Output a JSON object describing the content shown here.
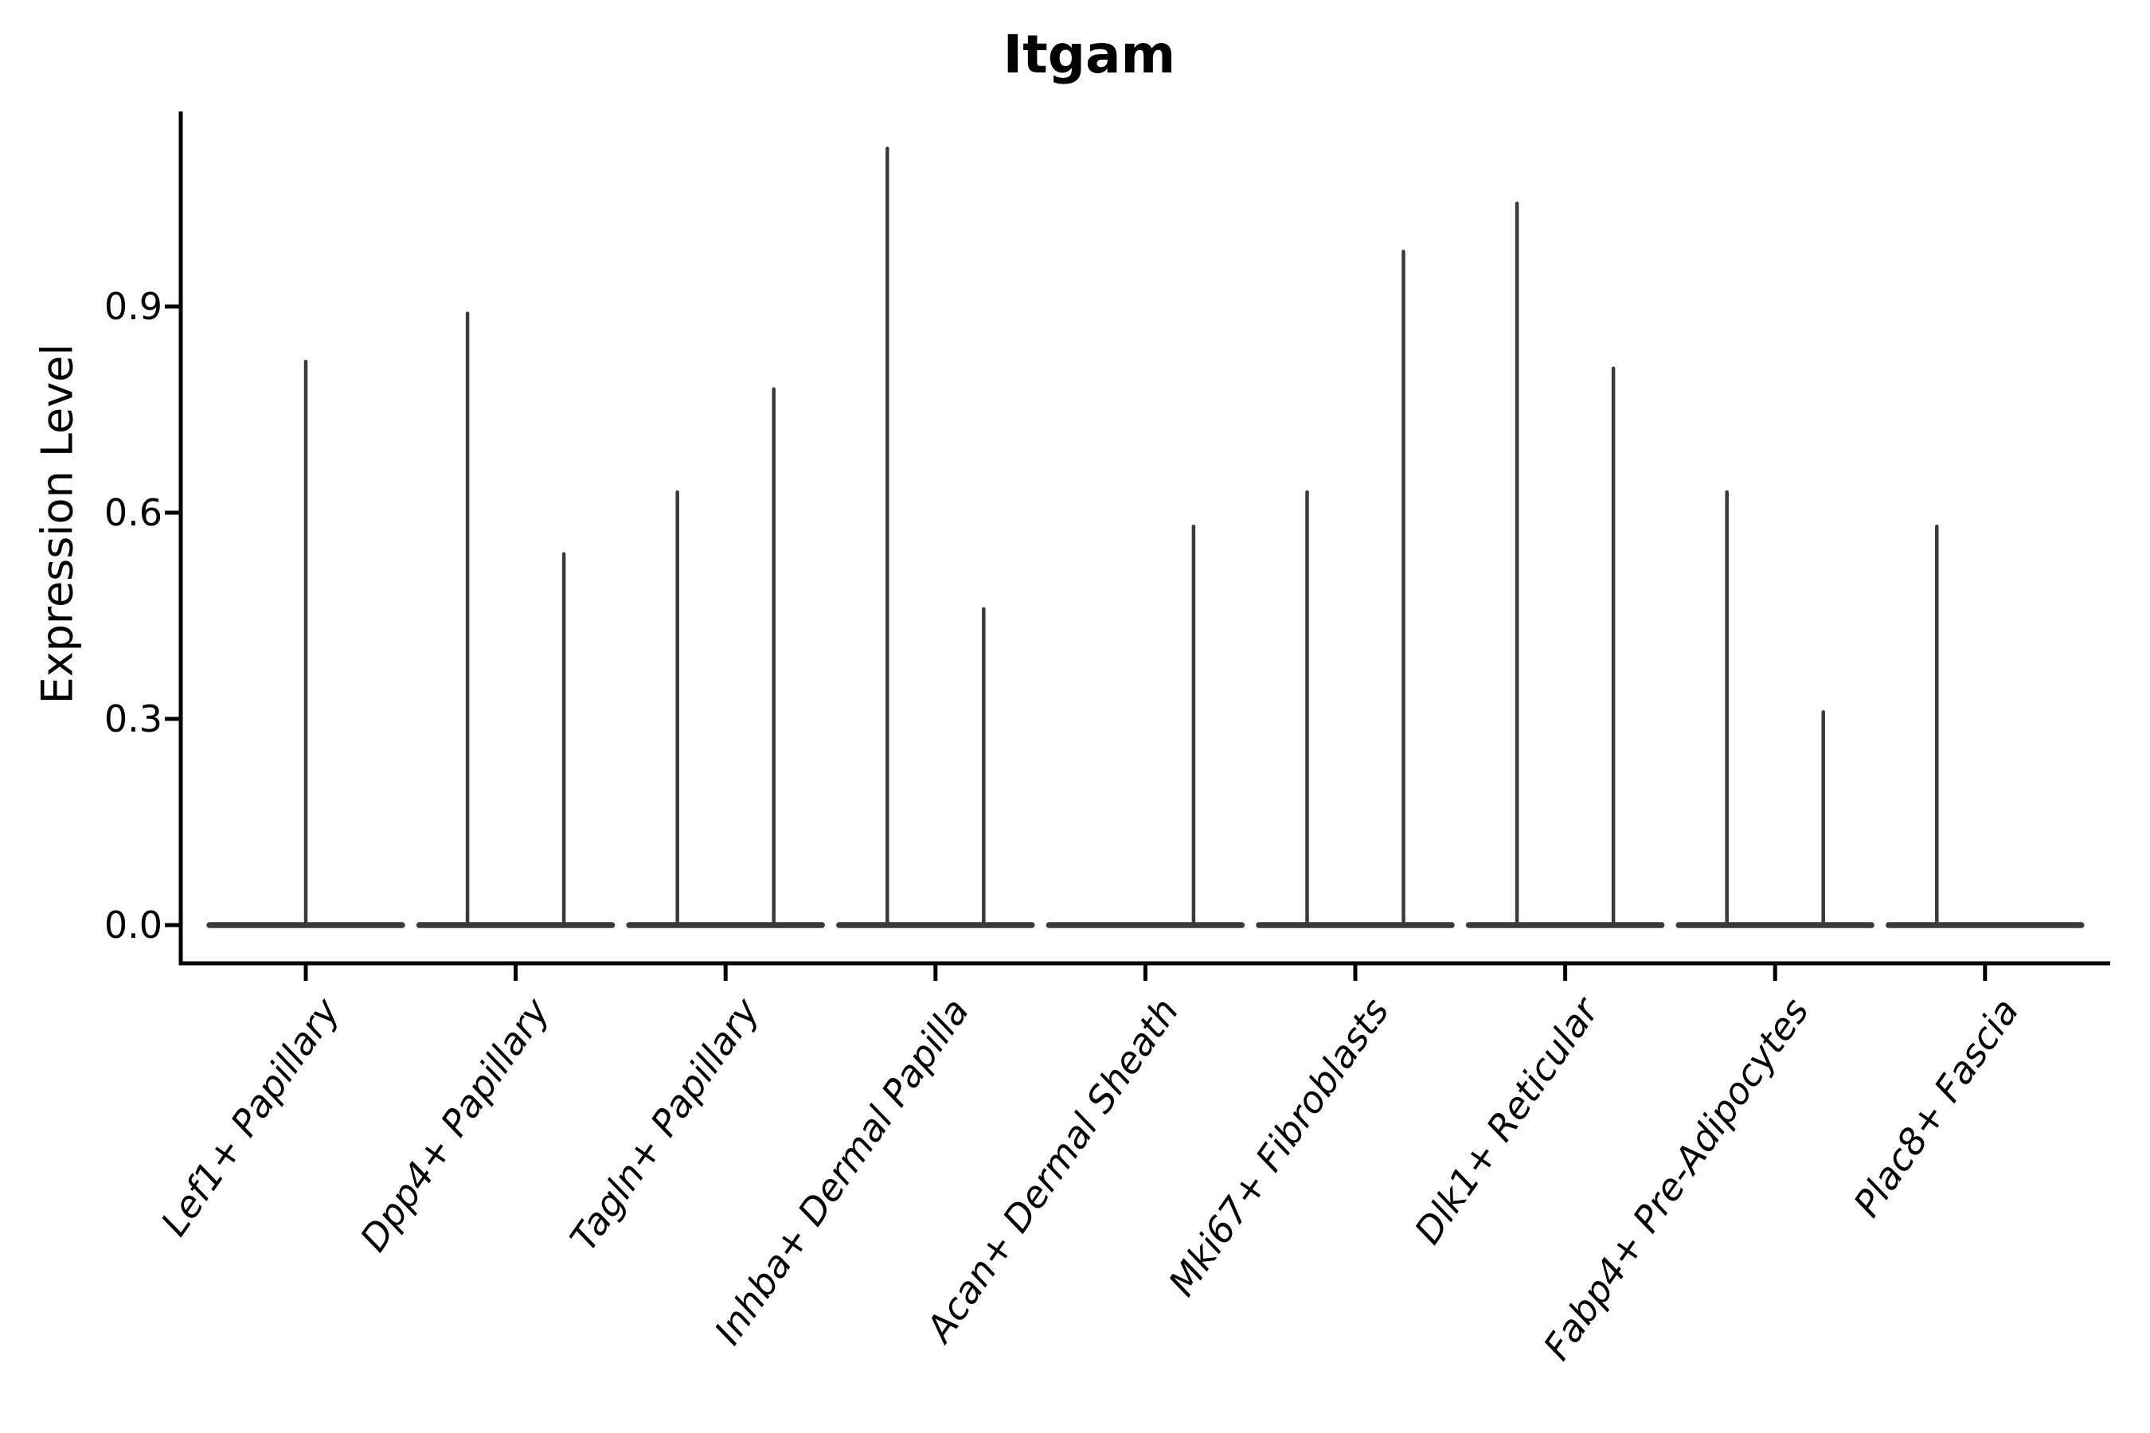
{
  "chart_data": {
    "type": "violin",
    "title": "Itgam",
    "xlabel": "",
    "ylabel": "Expression Level",
    "ylim": [
      -0.05,
      1.19
    ],
    "grid": false,
    "legend": "none",
    "yticks": [
      {
        "label": "0.0",
        "value": 0.0
      },
      {
        "label": "0.3",
        "value": 0.3
      },
      {
        "label": "0.6",
        "value": 0.6
      },
      {
        "label": "0.9",
        "value": 0.9
      }
    ],
    "categories": [
      "Lef1+ Papillary",
      "Dpp4+ Papillary",
      "Tagln+ Papillary",
      "Inhba+ Dermal Papilla",
      "Acan+ Dermal Sheath",
      "Mki67+ Fibroblasts",
      "Dlk1+ Reticular",
      "Fabp4+ Pre-Adipocytes",
      "Plac8+ Fascia"
    ],
    "violins": [
      {
        "category": "Lef1+ Papillary",
        "layout": "single",
        "peak_max": [
          0.82
        ]
      },
      {
        "category": "Dpp4+ Papillary",
        "layout": "split",
        "peak_max": [
          0.89,
          0.54
        ]
      },
      {
        "category": "Tagln+ Papillary",
        "layout": "split",
        "peak_max": [
          0.63,
          0.78
        ]
      },
      {
        "category": "Inhba+ Dermal Papilla",
        "layout": "split",
        "peak_max": [
          1.13,
          0.46
        ]
      },
      {
        "category": "Acan+ Dermal Sheath",
        "layout": "split",
        "peak_max": [
          0.0,
          0.58
        ]
      },
      {
        "category": "Mki67+ Fibroblasts",
        "layout": "split",
        "peak_max": [
          0.63,
          0.98
        ]
      },
      {
        "category": "Dlk1+ Reticular",
        "layout": "split",
        "peak_max": [
          1.05,
          0.81
        ]
      },
      {
        "category": "Fabp4+ Pre-Adipocytes",
        "layout": "split",
        "peak_max": [
          0.63,
          0.31
        ]
      },
      {
        "category": "Plac8+ Fascia",
        "layout": "split",
        "peak_max": [
          0.58,
          0.0
        ]
      }
    ],
    "colors": {
      "violin_stroke": "#3a3a3a",
      "axis": "#000000",
      "background": "#ffffff"
    }
  }
}
